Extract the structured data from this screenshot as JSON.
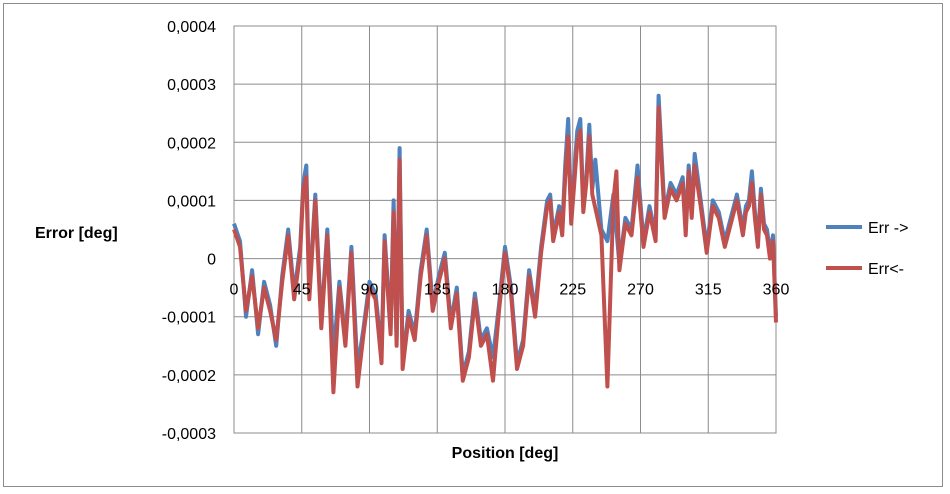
{
  "chart_data": {
    "type": "line",
    "title": "",
    "xlabel": "Position [deg]",
    "ylabel": "Error [deg]",
    "xlim": [
      0,
      360
    ],
    "ylim": [
      -0.0003,
      0.0004
    ],
    "grid": true,
    "legend_position": "right",
    "x_ticks": [
      "0",
      "45",
      "90",
      "135",
      "180",
      "225",
      "270",
      "315",
      "360"
    ],
    "y_ticks": [
      "0,0004",
      "0,0003",
      "0,0002",
      "0,0001",
      "0",
      "-0,0001",
      "-0,0002",
      "-0,0003"
    ],
    "x": [
      0,
      4,
      8,
      12,
      16,
      20,
      24,
      28,
      32,
      36,
      40,
      44,
      48,
      52,
      56,
      60,
      64,
      68,
      72,
      76,
      80,
      84,
      88,
      92,
      96,
      100,
      104,
      108,
      112,
      116,
      120,
      124,
      128,
      132,
      136,
      140,
      144,
      148,
      152,
      156,
      160,
      164,
      168,
      172,
      176,
      180,
      184,
      188,
      192,
      196,
      200,
      204,
      208,
      212,
      216,
      220,
      224,
      228,
      232,
      236,
      240,
      244,
      248,
      252,
      256,
      260,
      264,
      268,
      272,
      276,
      280,
      284,
      288,
      292,
      296,
      300,
      304,
      308,
      312,
      316,
      320,
      324,
      328,
      332,
      336,
      340,
      344,
      348,
      352,
      356,
      360
    ],
    "series": [
      {
        "name": "Err ->",
        "color": "#4f81bd",
        "values": [
          6e-05,
          3e-05,
          -0.0001,
          -2e-05,
          -0.00013,
          -4e-05,
          -8e-05,
          -0.00015,
          -3e-05,
          5e-05,
          -6e-05,
          2e-05,
          0.00013,
          0.00016,
          -6e-05,
          0.00011,
          -0.00011,
          5e-05,
          -0.00017,
          -4e-05,
          -0.00014,
          2e-05,
          -0.00019,
          -0.00012,
          -4e-05,
          -6e-05,
          -0.00016,
          4e-05,
          -0.00012,
          0.0001,
          -0.00014,
          0.00019,
          -0.00018,
          -9e-05,
          -0.00013,
          -2e-05,
          5e-05,
          -8e-05,
          -3e-05,
          1e-05,
          -0.00011,
          -5e-05,
          -0.0002,
          -0.00016,
          -6e-05,
          -0.00014,
          -0.00012,
          -0.00017,
          -8e-05,
          2e-05,
          -5e-05,
          -0.00018,
          -0.00014,
          -2e-05,
          -9e-05,
          2e-05,
          0.0001,
          0.00011,
          4e-05,
          9e-05,
          5e-05,
          0.00016,
          0.00024,
          7e-05,
          0.00015,
          0.00022,
          0.00024,
          9e-05,
          0.00014,
          0.00023,
          0.00012,
          0.00017,
          5e-05,
          3e-05,
          0.00011,
          -1e-05,
          7e-05,
          5e-05,
          0.00016,
          3e-05,
          9e-05,
          4e-05,
          0.00028,
          8e-05,
          0.00013,
          0.00011,
          0.00014,
          5e-05,
          0.00016,
          8e-05,
          0.00018,
          0.0001,
          2e-05,
          0.0001,
          8e-05,
          3e-05,
          7e-05,
          0.00011,
          5e-05,
          9e-05,
          0.0001,
          0.00015,
          8e-05,
          3e-05,
          0.00012,
          6e-05,
          5e-05,
          1e-05,
          4e-05,
          -0.0001
        ],
        "x": [
          0,
          4,
          8,
          12,
          16,
          20,
          24,
          28,
          32,
          36,
          40,
          44,
          46,
          48,
          50,
          54,
          58,
          62,
          66,
          70,
          74,
          78,
          82,
          86,
          90,
          94,
          98,
          100,
          104,
          106,
          108,
          110,
          112,
          116,
          120,
          124,
          128,
          132,
          136,
          140,
          144,
          148,
          152,
          156,
          160,
          164,
          168,
          172,
          176,
          180,
          184,
          188,
          192,
          196,
          200,
          204,
          208,
          210,
          212,
          216,
          218,
          220,
          222,
          224,
          226,
          228,
          230,
          232,
          234,
          236,
          238,
          240,
          244,
          248,
          252,
          256,
          260,
          264,
          268,
          272,
          276,
          280,
          282,
          286,
          290,
          294,
          298,
          300,
          302,
          304,
          306,
          310,
          314,
          318,
          322,
          326,
          330,
          334,
          338,
          340,
          342,
          344,
          346,
          348,
          350,
          352,
          354,
          356,
          358,
          360
        ]
      },
      {
        "name": "Err<-",
        "color": "#c0504d",
        "values": [
          5e-05,
          2e-05,
          -9e-05,
          -3e-05,
          -0.00012,
          -5e-05,
          -9e-05,
          -0.00014,
          -4e-05,
          4e-05,
          -7e-05,
          1e-05,
          0.00012,
          0.00014,
          -7e-05,
          0.0001,
          -0.00012,
          4e-05,
          -0.00023,
          -5e-05,
          -0.00015,
          1e-05,
          -0.00022,
          -0.00013,
          -5e-05,
          -7e-05,
          -0.00018,
          3e-05,
          -0.00013,
          8e-05,
          -0.00015,
          0.00017,
          -0.00019,
          -0.0001,
          -0.00014,
          -3e-05,
          4e-05,
          -9e-05,
          -4e-05,
          0.0,
          -0.00012,
          -6e-05,
          -0.00021,
          -0.00017,
          -7e-05,
          -0.00015,
          -0.00013,
          -0.00021,
          -9e-05,
          1e-05,
          -6e-05,
          -0.00019,
          -0.00015,
          -3e-05,
          -0.0001,
          1e-05,
          9e-05,
          0.0001,
          3e-05,
          8e-05,
          4e-05,
          0.00014,
          0.00021,
          6e-05,
          0.00013,
          0.0002,
          0.00022,
          8e-05,
          0.00013,
          0.00021,
          0.00011,
          0.00015,
          4e-05,
          -0.00022,
          0.0001,
          -2e-05,
          6e-05,
          4e-05,
          0.00014,
          2e-05,
          8e-05,
          3e-05,
          0.00026,
          7e-05,
          0.00012,
          0.0001,
          0.00013,
          4e-05,
          0.00015,
          7e-05,
          0.00016,
          9e-05,
          1e-05,
          9e-05,
          7e-05,
          2e-05,
          6e-05,
          0.0001,
          4e-05,
          8e-05,
          9e-05,
          0.00013,
          7e-05,
          2e-05,
          0.00011,
          5e-05,
          4e-05,
          0.0,
          3e-05,
          -0.00011
        ],
        "x": [
          0,
          4,
          8,
          12,
          16,
          20,
          24,
          28,
          32,
          36,
          40,
          44,
          46,
          48,
          50,
          54,
          58,
          62,
          66,
          70,
          74,
          78,
          82,
          86,
          90,
          94,
          98,
          100,
          104,
          106,
          108,
          110,
          112,
          116,
          120,
          124,
          128,
          132,
          136,
          140,
          144,
          148,
          152,
          156,
          160,
          164,
          168,
          172,
          176,
          180,
          184,
          188,
          192,
          196,
          200,
          204,
          208,
          210,
          212,
          216,
          218,
          220,
          222,
          224,
          226,
          228,
          230,
          232,
          234,
          236,
          238,
          254,
          244,
          248,
          252,
          256,
          260,
          264,
          268,
          272,
          276,
          280,
          282,
          286,
          290,
          294,
          298,
          300,
          302,
          304,
          306,
          310,
          314,
          318,
          322,
          326,
          330,
          334,
          338,
          340,
          342,
          344,
          346,
          348,
          350,
          352,
          354,
          356,
          358,
          360
        ]
      }
    ]
  }
}
